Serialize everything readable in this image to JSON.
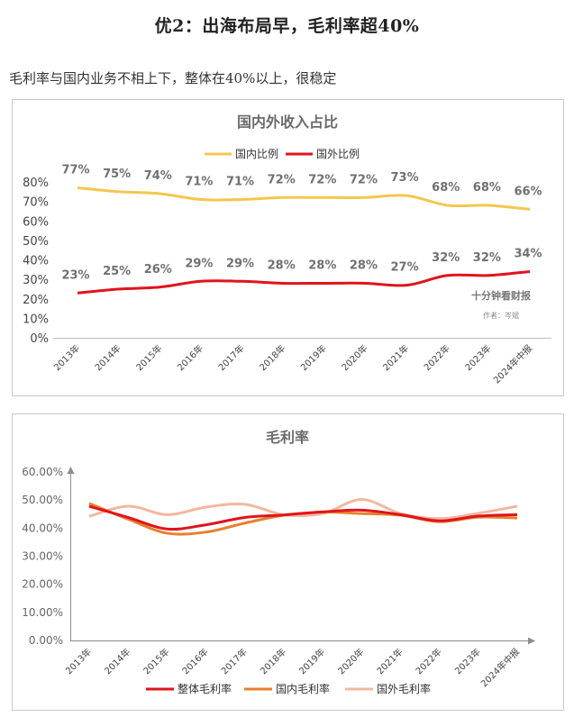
{
  "heading": "优2：出海布局早，毛利率超40%",
  "subtitle": "毛利率与国内业务不相上下，整体在40%以上，很稳定",
  "watermark": {
    "line1": "十分钟看财报",
    "line2": "作者：岑斌"
  },
  "colors": {
    "domestic_share": "#f3c74e",
    "overseas_share": "#e0141c",
    "overall_margin": "#e0141c",
    "domestic_margin": "#e8802d",
    "overseas_margin": "#f2b8a0",
    "title_text": "#6b6b6b"
  },
  "chart_data": [
    {
      "type": "line",
      "title": "国内外收入占比",
      "categories": [
        "2013年",
        "2014年",
        "2015年",
        "2016年",
        "2017年",
        "2018年",
        "2019年",
        "2020年",
        "2021年",
        "2022年",
        "2023年",
        "2024年中报"
      ],
      "ylim": [
        0,
        80
      ],
      "yticks": [
        "0%",
        "10%",
        "20%",
        "30%",
        "40%",
        "50%",
        "60%",
        "70%",
        "80%"
      ],
      "legend": "top-center",
      "series": [
        {
          "name": "国内比例",
          "values": [
            77,
            75,
            74,
            71,
            71,
            72,
            72,
            72,
            73,
            68,
            68,
            66
          ],
          "labels": [
            "77%",
            "75%",
            "74%",
            "71%",
            "71%",
            "72%",
            "72%",
            "72%",
            "73%",
            "68%",
            "68%",
            "66%"
          ]
        },
        {
          "name": "国外比例",
          "values": [
            23,
            25,
            26,
            29,
            29,
            28,
            28,
            28,
            27,
            32,
            32,
            34
          ],
          "labels": [
            "23%",
            "25%",
            "26%",
            "29%",
            "29%",
            "28%",
            "28%",
            "28%",
            "27%",
            "32%",
            "32%",
            "34%"
          ]
        }
      ]
    },
    {
      "type": "line",
      "title": "毛利率",
      "categories": [
        "2013年",
        "2014年",
        "2015年",
        "2016年",
        "2017年",
        "2018年",
        "2019年",
        "2020年",
        "2021年",
        "2022年",
        "2023年",
        "2024年中报"
      ],
      "ylim": [
        0,
        60
      ],
      "yticks": [
        "0.00%",
        "10.00%",
        "20.00%",
        "30.00%",
        "40.00%",
        "50.00%",
        "60.00%"
      ],
      "legend": "bottom-center",
      "series": [
        {
          "name": "整体毛利率",
          "values": [
            47.8,
            43.8,
            39.7,
            41.2,
            43.8,
            44.7,
            45.8,
            46.4,
            44.8,
            42.6,
            44.3,
            44.8
          ]
        },
        {
          "name": "国内毛利率",
          "values": [
            48.8,
            43.2,
            38.2,
            38.6,
            41.8,
            44.6,
            45.7,
            45.2,
            44.6,
            42.3,
            43.9,
            43.6
          ]
        },
        {
          "name": "国外毛利率",
          "values": [
            44.2,
            47.8,
            44.8,
            47.5,
            48.5,
            44.8,
            45.2,
            50.2,
            45.2,
            43.4,
            45.3,
            47.8
          ]
        }
      ]
    }
  ]
}
